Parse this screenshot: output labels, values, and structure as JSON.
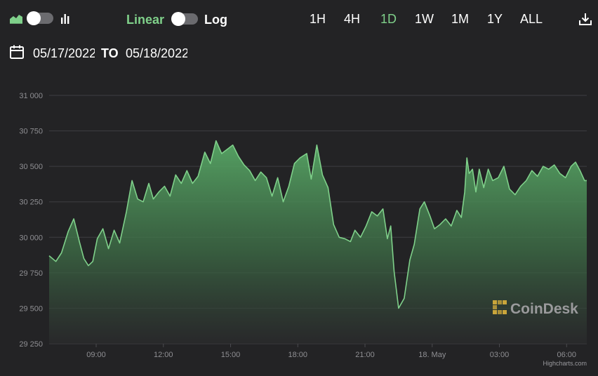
{
  "toolbar": {
    "area_chart_icon": "area-chart-icon",
    "bar_chart_icon": "bar-chart-icon",
    "linear_label": "Linear",
    "log_label": "Log",
    "ranges": [
      "1H",
      "4H",
      "1D",
      "1W",
      "1M",
      "1Y",
      "ALL"
    ],
    "active_range": "1D",
    "download_icon": "download-icon",
    "accent": "#7fd08a"
  },
  "dates": {
    "from": "05/17/2022",
    "to_label": "TO",
    "to": "05/18/2022"
  },
  "watermark": {
    "text": "CoinDesk"
  },
  "credits": "Highcharts.com",
  "chart_data": {
    "type": "area",
    "ylim": [
      29250,
      31000
    ],
    "yticks": [
      29250,
      29500,
      29750,
      30000,
      30250,
      30500,
      30750,
      31000
    ],
    "ytick_labels": [
      "29 250",
      "29 500",
      "29 750",
      "30 000",
      "30 250",
      "30 500",
      "30 750",
      "31 000"
    ],
    "xlim": [
      6.9,
      30.9
    ],
    "xticks": [
      9,
      12,
      15,
      18,
      21,
      24,
      27,
      30
    ],
    "xtick_labels": [
      "09:00",
      "12:00",
      "15:00",
      "18:00",
      "21:00",
      "18. May",
      "03:00",
      "06:00"
    ],
    "series_color": "#7fd08a",
    "x": [
      6.9,
      7.2,
      7.45,
      7.75,
      8.0,
      8.25,
      8.45,
      8.65,
      8.85,
      9.05,
      9.3,
      9.55,
      9.8,
      10.05,
      10.35,
      10.6,
      10.85,
      11.1,
      11.35,
      11.55,
      11.8,
      12.05,
      12.3,
      12.55,
      12.8,
      13.05,
      13.3,
      13.55,
      13.85,
      14.1,
      14.35,
      14.6,
      14.85,
      15.1,
      15.35,
      15.6,
      15.85,
      16.1,
      16.35,
      16.6,
      16.85,
      17.1,
      17.35,
      17.6,
      17.85,
      18.1,
      18.4,
      18.6,
      18.85,
      19.1,
      19.35,
      19.6,
      19.85,
      20.1,
      20.35,
      20.55,
      20.8,
      21.05,
      21.3,
      21.55,
      21.8,
      22.0,
      22.15,
      22.3,
      22.5,
      22.75,
      23.0,
      23.2,
      23.45,
      23.65,
      23.9,
      24.1,
      24.35,
      24.6,
      24.85,
      25.1,
      25.3,
      25.45,
      25.55,
      25.65,
      25.8,
      25.95,
      26.1,
      26.3,
      26.5,
      26.7,
      26.95,
      27.2,
      27.45,
      27.7,
      27.95,
      28.2,
      28.45,
      28.7,
      28.95,
      29.2,
      29.45,
      29.7,
      29.95,
      30.2,
      30.4,
      30.6,
      30.8,
      30.9
    ],
    "y": [
      29870,
      29830,
      29890,
      30040,
      30130,
      29970,
      29850,
      29800,
      29830,
      29990,
      30060,
      29920,
      30050,
      29960,
      30180,
      30400,
      30270,
      30250,
      30380,
      30270,
      30320,
      30360,
      30290,
      30440,
      30380,
      30470,
      30380,
      30430,
      30600,
      30520,
      30680,
      30590,
      30620,
      30650,
      30570,
      30510,
      30470,
      30400,
      30460,
      30420,
      30290,
      30420,
      30250,
      30360,
      30520,
      30560,
      30590,
      30410,
      30650,
      30440,
      30350,
      30090,
      30000,
      29990,
      29970,
      30050,
      30000,
      30080,
      30180,
      30150,
      30200,
      29990,
      30080,
      29760,
      29500,
      29570,
      29840,
      29950,
      30200,
      30250,
      30150,
      30060,
      30090,
      30130,
      30080,
      30190,
      30140,
      30320,
      30560,
      30450,
      30480,
      30320,
      30480,
      30350,
      30480,
      30400,
      30420,
      30500,
      30340,
      30300,
      30360,
      30400,
      30470,
      30430,
      30500,
      30480,
      30510,
      30450,
      30420,
      30500,
      30530,
      30470,
      30400,
      30400
    ]
  }
}
